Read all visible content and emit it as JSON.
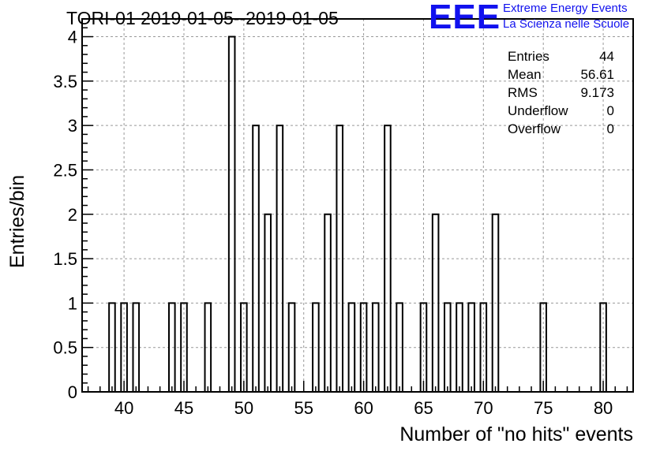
{
  "title": "TORI-01 2019-01-05--2019-01-05",
  "logo": {
    "mark": "EEE",
    "line1": "Extreme Energy Events",
    "line2": "La Scienza nelle Scuole",
    "color": "#1111ee"
  },
  "stats": [
    {
      "label": "Entries",
      "value": "44"
    },
    {
      "label": "Mean",
      "value": "56.61"
    },
    {
      "label": "RMS",
      "value": "9.173"
    },
    {
      "label": "Underflow",
      "value": "0"
    },
    {
      "label": "Overflow",
      "value": "0"
    }
  ],
  "chart_data": {
    "type": "bar",
    "xlabel": "Number of \"no hits\" events",
    "ylabel": "Entries/bin",
    "xlim": [
      36.5,
      82.5
    ],
    "ylim": [
      0,
      4.2
    ],
    "xticks": [
      40,
      45,
      50,
      55,
      60,
      65,
      70,
      75,
      80
    ],
    "yticks": [
      0,
      0.5,
      1,
      1.5,
      2,
      2.5,
      3,
      3.5,
      4
    ],
    "ytick_labels": [
      "0",
      "0.5",
      "1",
      "1.5",
      "2",
      "2.5",
      "3",
      "3.5",
      "4"
    ],
    "grid": true,
    "bin_width": 0.5,
    "bins": [
      {
        "x": 39,
        "value": 1
      },
      {
        "x": 40,
        "value": 1
      },
      {
        "x": 41,
        "value": 1
      },
      {
        "x": 44,
        "value": 1
      },
      {
        "x": 45,
        "value": 1
      },
      {
        "x": 47,
        "value": 1
      },
      {
        "x": 49,
        "value": 4
      },
      {
        "x": 50,
        "value": 1
      },
      {
        "x": 51,
        "value": 3
      },
      {
        "x": 52,
        "value": 2
      },
      {
        "x": 53,
        "value": 3
      },
      {
        "x": 54,
        "value": 1
      },
      {
        "x": 56,
        "value": 1
      },
      {
        "x": 57,
        "value": 2
      },
      {
        "x": 58,
        "value": 3
      },
      {
        "x": 59,
        "value": 1
      },
      {
        "x": 60,
        "value": 1
      },
      {
        "x": 61,
        "value": 1
      },
      {
        "x": 62,
        "value": 3
      },
      {
        "x": 63,
        "value": 1
      },
      {
        "x": 65,
        "value": 1
      },
      {
        "x": 66,
        "value": 2
      },
      {
        "x": 67,
        "value": 1
      },
      {
        "x": 68,
        "value": 1
      },
      {
        "x": 69,
        "value": 1
      },
      {
        "x": 70,
        "value": 1
      },
      {
        "x": 71,
        "value": 2
      },
      {
        "x": 75,
        "value": 1
      },
      {
        "x": 80,
        "value": 1
      }
    ]
  }
}
